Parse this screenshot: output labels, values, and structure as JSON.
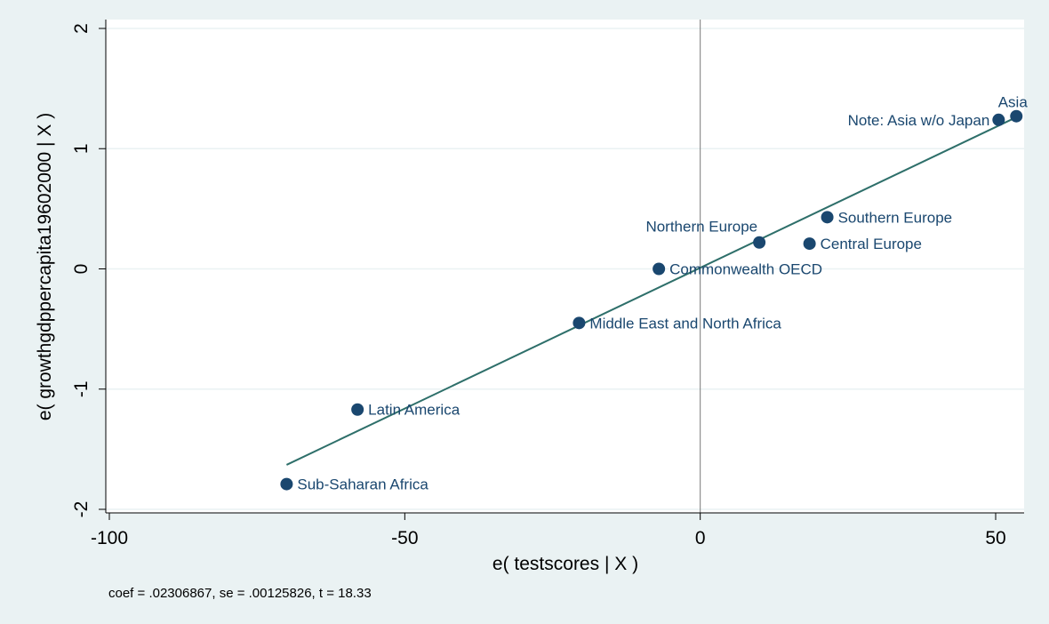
{
  "chart_data": {
    "type": "scatter",
    "title": "",
    "xlabel": "e( testscores | X )",
    "ylabel": "e( growthgdppercapita19602000 | X )",
    "xlim": [
      -100,
      55
    ],
    "ylim": [
      -2,
      2
    ],
    "x_ticks": [
      -100,
      -50,
      0,
      50
    ],
    "y_ticks": [
      -2,
      -1,
      0,
      1,
      2
    ],
    "grid": "horizontal",
    "reference_line_x": 0,
    "points": [
      {
        "label": "Sub-Saharan Africa",
        "x": -70.0,
        "y": -1.79,
        "label_side": "right"
      },
      {
        "label": "Latin America",
        "x": -58.0,
        "y": -1.17,
        "label_side": "right"
      },
      {
        "label": "Middle East and North Africa",
        "x": -20.5,
        "y": -0.45,
        "label_side": "right"
      },
      {
        "label": "Commonwealth OECD",
        "x": -7.0,
        "y": 0.0,
        "label_side": "right"
      },
      {
        "label": "Northern Europe",
        "x": 10.0,
        "y": 0.22,
        "label_side": "left-above"
      },
      {
        "label": "Central Europe",
        "x": 18.5,
        "y": 0.21,
        "label_side": "right"
      },
      {
        "label": "Southern Europe",
        "x": 21.5,
        "y": 0.43,
        "label_side": "right"
      },
      {
        "label": "Note: Asia w/o Japan",
        "x": 50.5,
        "y": 1.24,
        "label_side": "left"
      },
      {
        "label": "Asia",
        "x": 53.5,
        "y": 1.27,
        "label_side": "above"
      }
    ],
    "fit_line": {
      "x": [
        -70,
        53
      ],
      "y": [
        -1.63,
        1.25
      ]
    },
    "colors": {
      "marker": "#1a476f",
      "fit_line": "#2e6f6a",
      "grid": "#eaf2f3",
      "plot_bg": "#ffffff",
      "page_bg": "#eaf2f3"
    },
    "note": "coef = .02306867, se = .00125826, t = 18.33"
  }
}
